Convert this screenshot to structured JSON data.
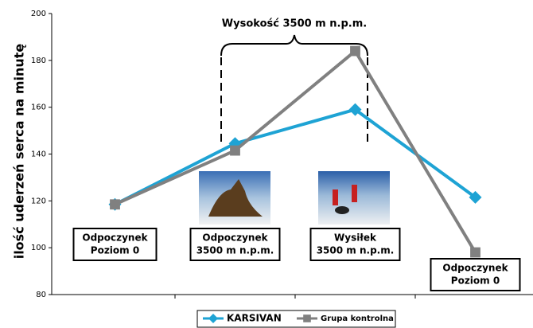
{
  "chart_data": {
    "type": "line",
    "y_axis_label": "ilość uderzeń serca na minutę",
    "annotation": "Wysokość 3500 m n.p.m.",
    "categories": [
      [
        "Odpoczynek",
        "Poziom 0"
      ],
      [
        "Odpoczynek",
        "3500 m n.p.m."
      ],
      [
        "Wysiłek",
        "3500 m n.p.m."
      ],
      [
        "Odpoczynek",
        "Poziom 0"
      ]
    ],
    "series": [
      {
        "name": "KARSIVAN",
        "color": "#1ea3d4",
        "marker": "diamond",
        "values": [
          118.5,
          144.5,
          159,
          121.5
        ]
      },
      {
        "name": "Grupa kontrolna",
        "color": "#808080",
        "marker": "square",
        "values": [
          118.5,
          141.5,
          184,
          98
        ]
      }
    ],
    "ylim": [
      80,
      200
    ],
    "yticks": [
      80,
      100,
      120,
      140,
      160,
      180,
      200
    ]
  }
}
